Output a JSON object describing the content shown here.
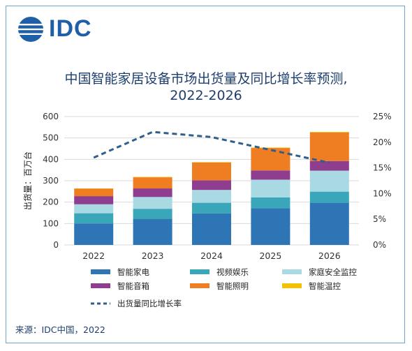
{
  "header": {
    "brand": "IDC",
    "title_line1": "中国智能家居设备市场出货量及同比增长率预测,",
    "title_line2": "2022-2026"
  },
  "source": "来源：IDC中国，2022",
  "colors": {
    "brand": "#1f5fa8",
    "智能家电": "#2e75b6",
    "视频娱乐": "#3aa6b9",
    "家庭安全监控": "#a9d9e3",
    "智能音箱": "#8e3d8f",
    "智能照明": "#ef7d22",
    "智能温控": "#f2c200",
    "line": "#2f5f8a"
  },
  "chart_data": {
    "type": "bar",
    "stacked": true,
    "categories": [
      "2022",
      "2023",
      "2024",
      "2025",
      "2026"
    ],
    "series": [
      {
        "name": "智能家电",
        "values": [
          100,
          122,
          147,
          172,
          197
        ]
      },
      {
        "name": "视频娱乐",
        "values": [
          48,
          47,
          50,
          50,
          52
        ]
      },
      {
        "name": "家庭安全监控",
        "values": [
          42,
          55,
          60,
          83,
          98
        ]
      },
      {
        "name": "智能音箱",
        "values": [
          38,
          40,
          45,
          43,
          45
        ]
      },
      {
        "name": "智能照明",
        "values": [
          35,
          52,
          83,
          105,
          133
        ]
      },
      {
        "name": "智能温控",
        "values": [
          1,
          2,
          2,
          2,
          3
        ]
      }
    ],
    "line_series": {
      "name": "出货量同比增长率",
      "values": [
        17,
        22,
        21,
        18.5,
        16
      ],
      "style": "dashed"
    },
    "ylabel": "出货量：百万台",
    "ylim": [
      0,
      600
    ],
    "yticks": [
      0,
      100,
      200,
      300,
      400,
      500,
      600
    ],
    "y2lim": [
      0,
      25
    ],
    "y2ticks": [
      "0%",
      "5%",
      "10%",
      "15%",
      "20%",
      "25%"
    ],
    "grid": true,
    "legend_position": "bottom"
  }
}
